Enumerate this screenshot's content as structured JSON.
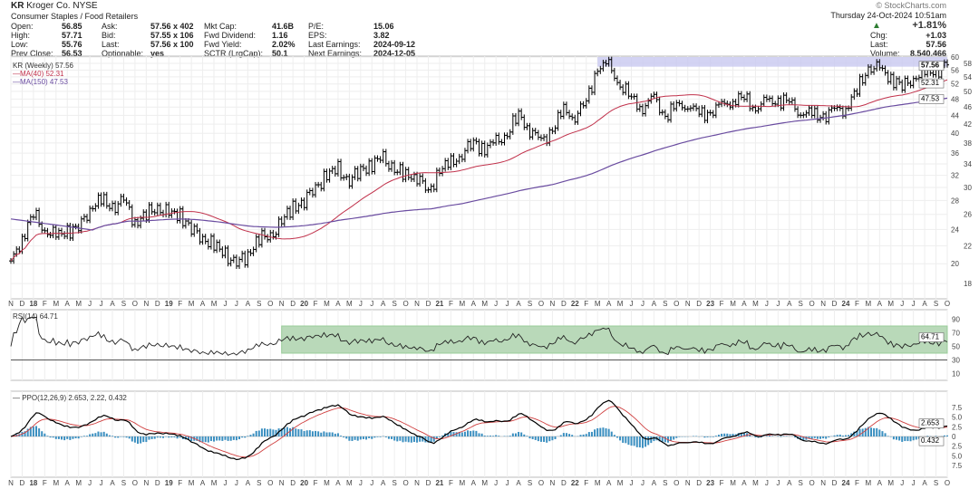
{
  "header": {
    "symbol": "KR",
    "company": "Kroger Co. NYSE",
    "sector": "Consumer Staples / Food Retailers",
    "fields": [
      {
        "label": "Open:",
        "value": "56.85"
      },
      {
        "label": "High:",
        "value": "57.71"
      },
      {
        "label": "Low:",
        "value": "55.76"
      },
      {
        "label": "Prev Close:",
        "value": "56.53"
      },
      {
        "label": "Ask:",
        "value": "57.56 x 402"
      },
      {
        "label": "Bid:",
        "value": "57.55 x 106"
      },
      {
        "label": "Last:",
        "value": "57.56 x 100"
      },
      {
        "label": "Optionable:",
        "value": "yes"
      },
      {
        "label": "Mkt Cap:",
        "value": "41.6B"
      },
      {
        "label": "Fwd Dividend:",
        "value": "1.16"
      },
      {
        "label": "Fwd Yield:",
        "value": "2.02%"
      },
      {
        "label": "SCTR (LrgCap):",
        "value": "50.1"
      },
      {
        "label": "P/E:",
        "value": "15.06"
      },
      {
        "label": "EPS:",
        "value": "3.82"
      },
      {
        "label": "Last Earnings:",
        "value": "2024-09-12"
      },
      {
        "label": "Next Earnings:",
        "value": "2024-12-05"
      }
    ],
    "source": "© StockCharts.com",
    "datetime": "Thursday 24-Oct-2024 10:51am",
    "pct_change": "+1.81%",
    "chg_label": "Chg:",
    "chg": "+1.03",
    "last_label": "Last:",
    "last": "57.56",
    "volume_label": "Volume:",
    "volume": "8,540,466",
    "up_color": "#2e7d32"
  },
  "chart_data": [
    {
      "type": "bar",
      "title": "KR (Weekly) 57.56",
      "scale": "log",
      "ylim": [
        17,
        60
      ],
      "legend": [
        "MA(40) 52.31",
        "MA(150) 47.53"
      ],
      "yticks": [
        "60",
        "58",
        "56",
        "54",
        "52",
        "50",
        "48",
        "46",
        "44",
        "42",
        "40",
        "38",
        "36",
        "34",
        "32",
        "30",
        "28",
        "26",
        "24",
        "22",
        "20",
        "18"
      ],
      "last_labels": [
        "57.56",
        "52.31",
        "47.53"
      ],
      "start": "2017-11",
      "frequency": "monthly",
      "closes": [
        20,
        23,
        26,
        24,
        23,
        24,
        24,
        27,
        28,
        27,
        28,
        25,
        26,
        27,
        26,
        26,
        24,
        23,
        22,
        21,
        20,
        21,
        23,
        23,
        25,
        27,
        28,
        30,
        32,
        33,
        31,
        33,
        34,
        35,
        33,
        32,
        32,
        29,
        33,
        34,
        36,
        38,
        37,
        38,
        40,
        44,
        41,
        38,
        41,
        45,
        44,
        47,
        57,
        57,
        52,
        48,
        46,
        48,
        44,
        46,
        47,
        44,
        45,
        46,
        48,
        48,
        46,
        47,
        48,
        47,
        45,
        44,
        44,
        45,
        46,
        50,
        57,
        56,
        54,
        51,
        54,
        55,
        56,
        57.56
      ],
      "resistance_band": {
        "from": "2022-03",
        "low": 57,
        "high": 60,
        "color": "#c8c8f0"
      },
      "colors": {
        "price": "#000000",
        "ma40": "#c0304a",
        "ma150": "#6a4ca0"
      }
    },
    {
      "type": "line",
      "title": "RSI(14) 64.71",
      "yticks": [
        "90",
        "70",
        "50",
        "30",
        "10"
      ],
      "ylim": [
        0,
        100
      ],
      "last_label": "64.71",
      "band": {
        "from": "2019-11",
        "low": 40,
        "high": 80,
        "color": "#b9d9b9"
      }
    },
    {
      "type": "line",
      "title": "PPO(12,26,9) 2.653, 2.22, 0.432",
      "yticks": [
        "7.5",
        "5.0",
        "2.5",
        "0",
        "-2.5",
        "-5.0",
        "-7.5"
      ],
      "ylim": [
        -9,
        9
      ],
      "last_labels": [
        "2.653",
        "0.432"
      ],
      "colors": {
        "ppo": "#000000",
        "signal": "#d04040",
        "hist": "#3b8fc0"
      }
    }
  ],
  "x_tick_labels": [
    "N",
    "D",
    "18",
    "F",
    "M",
    "A",
    "M",
    "J",
    "J",
    "A",
    "S",
    "O",
    "N",
    "D",
    "19",
    "F",
    "M",
    "A",
    "M",
    "J",
    "J",
    "A",
    "S",
    "O",
    "N",
    "D",
    "20",
    "F",
    "M",
    "A",
    "M",
    "J",
    "J",
    "A",
    "S",
    "O",
    "N",
    "D",
    "21",
    "F",
    "M",
    "A",
    "M",
    "J",
    "J",
    "A",
    "S",
    "O",
    "N",
    "D",
    "22",
    "F",
    "M",
    "A",
    "M",
    "J",
    "J",
    "A",
    "S",
    "O",
    "N",
    "D",
    "23",
    "F",
    "M",
    "A",
    "M",
    "J",
    "J",
    "A",
    "S",
    "O",
    "N",
    "D",
    "24",
    "F",
    "M",
    "A",
    "M",
    "J",
    "J",
    "A",
    "S",
    "O"
  ]
}
